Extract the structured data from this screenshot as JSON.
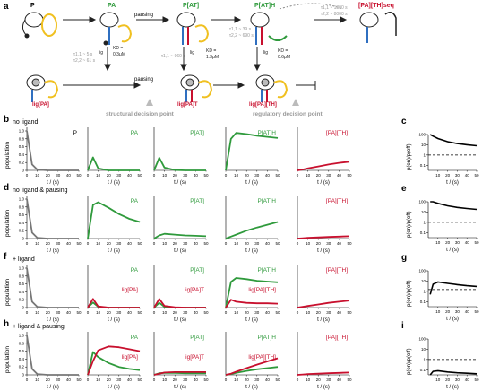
{
  "panel_letters": {
    "a": "a",
    "b": "b",
    "c": "c",
    "d": "d",
    "e": "e",
    "f": "f",
    "g": "g",
    "h": "h",
    "i": "i"
  },
  "scheme": {
    "states": {
      "P": "P",
      "PA": "PA",
      "PAT": "P[AT]",
      "PATH": "P[AT]H",
      "PATHseq": "[PA][TH]seq",
      "ligPA": "lig[PA]",
      "ligPAT": "lig[PA]T",
      "ligPATH": "lig[PA][TH]"
    },
    "pausing": "pausing",
    "lig": "lig",
    "rates": {
      "r1a": "τ1,1 ~ 5 s",
      "r1b": "τ2,2 ~ 61 s",
      "r2": "τ1,1 ~ 960 s",
      "r3a": "τ1,1 ~ 39 s",
      "r3b": "τ2,2 ~ 690 s",
      "r4a": "τ1,1 ~ 1300 s",
      "r4b": "τ2,2 ~ 8000 s"
    },
    "kd": {
      "k1a": "KD =",
      "k1b": "0.3μM",
      "k2a": "KD =",
      "k2b": "1.3μM",
      "k3a": "KD =",
      "k3b": "0.6μM"
    },
    "structural": "structural decision point",
    "regulatory": "regulatory decision point"
  },
  "rows": [
    {
      "title": "no ligand",
      "labels": [
        "P",
        "PA",
        "P[AT]",
        "P[AT]H",
        "[PA][TH]"
      ],
      "extra": [
        "",
        "",
        "",
        "",
        ""
      ]
    },
    {
      "title": "no ligand &  pausing",
      "labels": [
        "",
        "PA",
        "P[AT]",
        "P[AT]H",
        "[PA][TH]"
      ],
      "extra": [
        "",
        "",
        "",
        "",
        ""
      ]
    },
    {
      "title": "+ ligand",
      "labels": [
        "",
        "PA",
        "P[AT]",
        "P[AT]H",
        "[PA][TH]"
      ],
      "extra": [
        "",
        "lig[PA]",
        "lig[PA]T",
        "lig[PA][TH]",
        ""
      ]
    },
    {
      "title": "+ ligand & pausing",
      "labels": [
        "",
        "PA",
        "P[AT]",
        "P[AT]H",
        "[PA][TH]"
      ],
      "extra": [
        "",
        "lig[PA]",
        "lig[PA]T",
        "lig[PA][TH]",
        ""
      ]
    }
  ],
  "axes": {
    "ylabel": "population",
    "xlabel": "t / (s)",
    "yticks": [
      "0",
      "0.2",
      "0.4",
      "0.6",
      "0.8",
      "1.0"
    ],
    "xticks": [
      "0",
      "10",
      "20",
      "30",
      "40",
      "50"
    ],
    "ratio_ylabel": "p(on)/p(off)",
    "ratio_yticks": [
      "100",
      "10",
      "1",
      "0.1"
    ],
    "ratio_xticks": [
      "10",
      "20",
      "30",
      "40",
      "50"
    ]
  },
  "colors": {
    "gray": "#777777",
    "green": "#2f9a3c",
    "red": "#c8102e",
    "black": "#000000"
  },
  "chart_data": [
    {
      "type": "line",
      "row": "no ligand",
      "x": [
        0,
        5,
        10,
        20,
        30,
        40,
        50
      ],
      "series": [
        {
          "name": "P",
          "color": "gray",
          "values": [
            1.0,
            0.15,
            0.02,
            0,
            0,
            0,
            0
          ]
        },
        {
          "name": "PA",
          "color": "green",
          "values": [
            0,
            0.33,
            0.05,
            0.0,
            0,
            0,
            0
          ]
        },
        {
          "name": "P[AT]",
          "color": "green",
          "values": [
            0,
            0.32,
            0.07,
            0.01,
            0,
            0,
            0
          ]
        },
        {
          "name": "P[AT]H",
          "color": "green",
          "values": [
            0,
            0.8,
            0.95,
            0.92,
            0.88,
            0.85,
            0.82
          ]
        },
        {
          "name": "[PA][TH]",
          "color": "red",
          "values": [
            0,
            0.02,
            0.05,
            0.1,
            0.15,
            0.19,
            0.22
          ]
        }
      ]
    },
    {
      "type": "line",
      "row": "no ligand &  pausing",
      "x": [
        0,
        5,
        10,
        20,
        30,
        40,
        50
      ],
      "series": [
        {
          "name": "P",
          "color": "gray",
          "values": [
            1.0,
            0.15,
            0.02,
            0,
            0,
            0,
            0
          ]
        },
        {
          "name": "PA",
          "color": "green",
          "values": [
            0,
            0.85,
            0.92,
            0.78,
            0.62,
            0.5,
            0.42
          ]
        },
        {
          "name": "P[AT]",
          "color": "green",
          "values": [
            0,
            0.08,
            0.12,
            0.1,
            0.08,
            0.07,
            0.06
          ]
        },
        {
          "name": "P[AT]H",
          "color": "green",
          "values": [
            0,
            0.05,
            0.1,
            0.2,
            0.28,
            0.35,
            0.42
          ]
        },
        {
          "name": "[PA][TH]",
          "color": "red",
          "values": [
            0,
            0.01,
            0.02,
            0.03,
            0.04,
            0.05,
            0.06
          ]
        }
      ]
    },
    {
      "type": "line",
      "row": "+ ligand",
      "x": [
        0,
        5,
        10,
        20,
        30,
        40,
        50
      ],
      "series": [
        {
          "name": "P",
          "color": "gray",
          "values": [
            1.0,
            0.15,
            0.02,
            0,
            0,
            0,
            0
          ]
        },
        {
          "name": "PA",
          "color": "green",
          "values": [
            0,
            0.13,
            0.02,
            0,
            0,
            0,
            0
          ]
        },
        {
          "name": "lig[PA]",
          "color": "red",
          "values": [
            0,
            0.22,
            0.03,
            0,
            0,
            0,
            0
          ]
        },
        {
          "name": "P[AT]",
          "color": "green",
          "values": [
            0,
            0.12,
            0.02,
            0,
            0,
            0,
            0
          ]
        },
        {
          "name": "lig[PA]T",
          "color": "red",
          "values": [
            0,
            0.22,
            0.04,
            0.01,
            0,
            0,
            0
          ]
        },
        {
          "name": "P[AT]H",
          "color": "green",
          "values": [
            0,
            0.65,
            0.75,
            0.72,
            0.68,
            0.66,
            0.64
          ]
        },
        {
          "name": "lig[PA][TH]",
          "color": "red",
          "values": [
            0,
            0.2,
            0.15,
            0.12,
            0.11,
            0.11,
            0.1
          ]
        },
        {
          "name": "[PA][TH]",
          "color": "red",
          "values": [
            0,
            0.02,
            0.04,
            0.08,
            0.12,
            0.15,
            0.18
          ]
        }
      ]
    },
    {
      "type": "line",
      "row": "+ ligand & pausing",
      "x": [
        0,
        5,
        10,
        20,
        30,
        40,
        50
      ],
      "series": [
        {
          "name": "P",
          "color": "gray",
          "values": [
            1.0,
            0.15,
            0.02,
            0,
            0,
            0,
            0
          ]
        },
        {
          "name": "PA",
          "color": "green",
          "values": [
            0,
            0.58,
            0.45,
            0.3,
            0.2,
            0.15,
            0.12
          ]
        },
        {
          "name": "lig[PA]",
          "color": "red",
          "values": [
            0,
            0.35,
            0.62,
            0.72,
            0.7,
            0.65,
            0.6
          ]
        },
        {
          "name": "P[AT]",
          "color": "green",
          "values": [
            0,
            0.04,
            0.05,
            0.05,
            0.04,
            0.04,
            0.04
          ]
        },
        {
          "name": "lig[PA]T",
          "color": "red",
          "values": [
            0,
            0.03,
            0.06,
            0.07,
            0.07,
            0.07,
            0.07
          ]
        },
        {
          "name": "P[AT]H",
          "color": "green",
          "values": [
            0,
            0.02,
            0.05,
            0.1,
            0.14,
            0.17,
            0.2
          ]
        },
        {
          "name": "lig[PA][TH]",
          "color": "red",
          "values": [
            0,
            0.03,
            0.08,
            0.17,
            0.26,
            0.34,
            0.42
          ]
        },
        {
          "name": "[PA][TH]",
          "color": "red",
          "values": [
            0,
            0.01,
            0.02,
            0.03,
            0.04,
            0.05,
            0.06
          ]
        }
      ]
    },
    {
      "type": "line",
      "row": "ratio c",
      "ylog": true,
      "x": [
        2,
        5,
        10,
        20,
        30,
        40,
        50
      ],
      "yref": 1,
      "values": [
        100,
        70,
        40,
        20,
        13,
        10,
        8
      ]
    },
    {
      "type": "line",
      "row": "ratio e",
      "ylog": true,
      "x": [
        2,
        5,
        10,
        20,
        30,
        40,
        50
      ],
      "yref": 1,
      "values": [
        150,
        100,
        70,
        40,
        28,
        22,
        18
      ]
    },
    {
      "type": "line",
      "row": "ratio g",
      "ylog": true,
      "x": [
        2,
        5,
        10,
        20,
        30,
        40,
        50
      ],
      "yref": 1.5,
      "values": [
        0.5,
        5,
        8,
        6,
        4.5,
        3.5,
        3
      ]
    },
    {
      "type": "line",
      "row": "ratio i",
      "ylog": true,
      "x": [
        2,
        5,
        10,
        20,
        30,
        40,
        50
      ],
      "yref": 1,
      "values": [
        0.02,
        0.07,
        0.08,
        0.06,
        0.05,
        0.045,
        0.04
      ]
    }
  ]
}
